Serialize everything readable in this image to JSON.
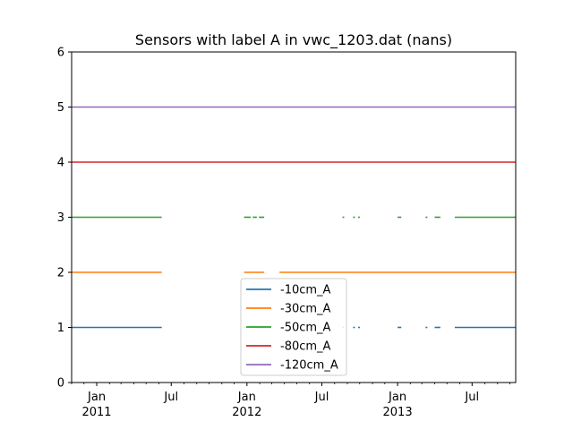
{
  "chart_data": {
    "type": "line",
    "title": "Sensors with label A in vwc_1203.dat (nans)",
    "xlabel": "",
    "ylabel": "",
    "ylim": [
      0,
      6
    ],
    "yticks": [
      "0",
      "1",
      "2",
      "3",
      "4",
      "5",
      "6"
    ],
    "xlim": [
      "2010-11-01",
      "2013-10-15"
    ],
    "xticks_major": [
      {
        "date": "2011-01-01",
        "label": "Jan",
        "sublabel": "2011"
      },
      {
        "date": "2011-07-01",
        "label": "Jul",
        "sublabel": ""
      },
      {
        "date": "2012-01-01",
        "label": "Jan",
        "sublabel": "2012"
      },
      {
        "date": "2012-07-01",
        "label": "Jul",
        "sublabel": ""
      },
      {
        "date": "2013-01-01",
        "label": "Jan",
        "sublabel": "2013"
      },
      {
        "date": "2013-07-01",
        "label": "Jul",
        "sublabel": ""
      }
    ],
    "legend_position": "lower-center",
    "grid": false,
    "series": [
      {
        "name": "-10cm_A",
        "color": "#1f77b4",
        "y": 1,
        "segments": [
          [
            "2010-11-01",
            "2011-06-08"
          ],
          [
            "2011-12-25",
            "2012-02-12"
          ],
          [
            "2012-08-20",
            "2012-08-22"
          ],
          [
            "2012-09-15",
            "2012-09-17"
          ],
          [
            "2012-09-27",
            "2012-09-30"
          ],
          [
            "2013-01-01",
            "2013-01-10"
          ],
          [
            "2013-03-10",
            "2013-03-12"
          ],
          [
            "2013-04-01",
            "2013-04-15"
          ],
          [
            "2013-05-20",
            "2013-10-15"
          ]
        ]
      },
      {
        "name": "-30cm_A",
        "color": "#ff7f0e",
        "y": 2,
        "segments": [
          [
            "2010-11-01",
            "2011-06-08"
          ],
          [
            "2011-12-25",
            "2012-02-12"
          ],
          [
            "2012-03-20",
            "2013-10-15"
          ]
        ]
      },
      {
        "name": "-50cm_A",
        "color": "#2ca02c",
        "y": 3,
        "segments": [
          [
            "2010-11-01",
            "2011-06-08"
          ],
          [
            "2011-12-25",
            "2012-01-10"
          ],
          [
            "2012-01-15",
            "2012-01-25"
          ],
          [
            "2012-01-30",
            "2012-02-12"
          ],
          [
            "2012-08-20",
            "2012-08-22"
          ],
          [
            "2012-09-15",
            "2012-09-17"
          ],
          [
            "2012-09-27",
            "2012-09-30"
          ],
          [
            "2013-01-01",
            "2013-01-10"
          ],
          [
            "2013-03-10",
            "2013-03-12"
          ],
          [
            "2013-04-01",
            "2013-04-15"
          ],
          [
            "2013-05-20",
            "2013-10-15"
          ]
        ]
      },
      {
        "name": "-80cm_A",
        "color": "#d62728",
        "y": 4,
        "segments": [
          [
            "2010-11-01",
            "2013-10-15"
          ]
        ]
      },
      {
        "name": "-120cm_A",
        "color": "#9467bd",
        "y": 5,
        "segments": [
          [
            "2010-11-01",
            "2013-10-15"
          ]
        ]
      }
    ]
  }
}
